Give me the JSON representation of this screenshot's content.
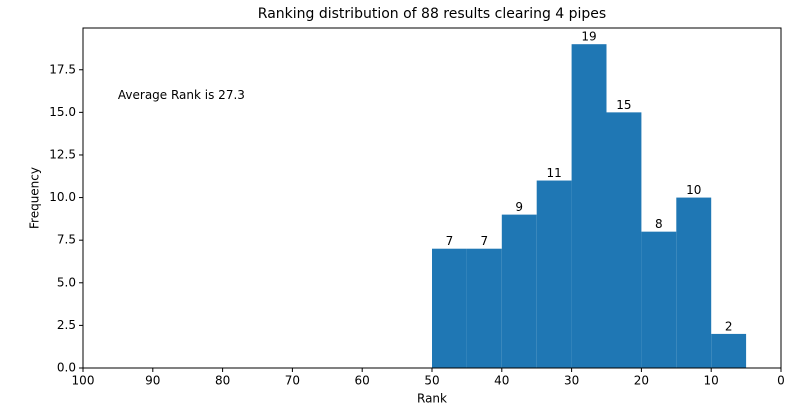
{
  "chart_data": {
    "type": "histogram",
    "title": "Ranking distribution of 88 results clearing 4 pipes",
    "x_label": "Rank",
    "y_label": "Frequency",
    "annotation": {
      "text": "Average Rank is 27.3",
      "x": 95,
      "y": 16
    },
    "bins": [
      50,
      45,
      40,
      35,
      30,
      25,
      20,
      15,
      10,
      5
    ],
    "values": [
      7,
      7,
      9,
      11,
      19,
      15,
      8,
      10,
      2
    ],
    "color": "#1f77b4",
    "xlim": [
      100,
      0
    ],
    "xticks": [
      100,
      90,
      80,
      70,
      60,
      50,
      40,
      30,
      20,
      10,
      0
    ],
    "ylim": [
      0,
      19.95
    ],
    "yticks": [
      {
        "value": 0,
        "label": "0.0"
      },
      {
        "value": 2.5,
        "label": "2.5"
      },
      {
        "value": 5,
        "label": "5.0"
      },
      {
        "value": 7.5,
        "label": "7.5"
      },
      {
        "value": 10,
        "label": "10.0"
      },
      {
        "value": 12.5,
        "label": "12.5"
      },
      {
        "value": 15,
        "label": "15.0"
      },
      {
        "value": 17.5,
        "label": "17.5"
      }
    ]
  }
}
